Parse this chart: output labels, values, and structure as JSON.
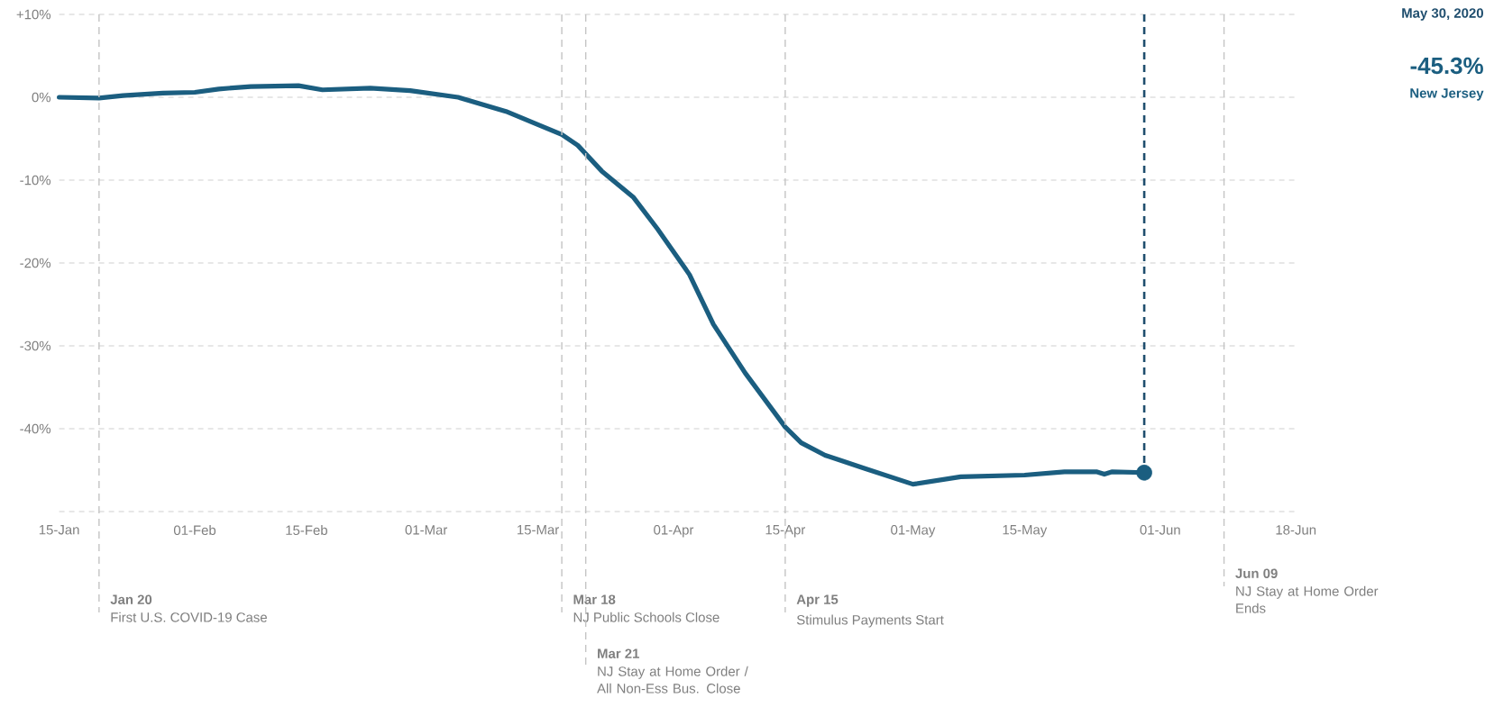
{
  "chart_data": {
    "type": "line",
    "x": [
      "2020-01-15",
      "2020-01-20",
      "2020-01-23",
      "2020-01-28",
      "2020-02-01",
      "2020-02-04",
      "2020-02-08",
      "2020-02-14",
      "2020-02-17",
      "2020-02-23",
      "2020-02-28",
      "2020-03-05",
      "2020-03-11",
      "2020-03-15",
      "2020-03-18",
      "2020-03-20",
      "2020-03-23",
      "2020-03-27",
      "2020-03-30",
      "2020-04-03",
      "2020-04-06",
      "2020-04-10",
      "2020-04-15",
      "2020-04-17",
      "2020-04-20",
      "2020-04-25",
      "2020-05-01",
      "2020-05-07",
      "2020-05-15",
      "2020-05-20",
      "2020-05-24",
      "2020-05-25",
      "2020-05-26",
      "2020-05-30"
    ],
    "series": [
      {
        "name": "New Jersey",
        "color": "#1b5e80",
        "marker": "none",
        "line_style": "solid",
        "values": [
          0,
          -0.1,
          0.2,
          0.5,
          0.6,
          1.0,
          1.3,
          1.4,
          0.9,
          1.1,
          0.8,
          0,
          -1.7,
          -3.3,
          -4.5,
          -5.8,
          -8.9,
          -12.1,
          -15.9,
          -21.4,
          -27.4,
          -33.3,
          -39.8,
          -41.7,
          -43.2,
          -44.8,
          -46.7,
          -45.8,
          -45.6,
          -45.2,
          -45.2,
          -45.5,
          -45.2,
          -45.3
        ]
      },
      {
        "type": "scatter",
        "color": "#1b5e80",
        "marker": "circle",
        "x": [
          "2020-05-30"
        ],
        "values": [
          -45.3
        ]
      }
    ],
    "xlim": [
      "2020-01-15",
      "2020-06-18"
    ],
    "xticks": [
      {
        "value": "2020-01-15",
        "label": "15-Jan"
      },
      {
        "value": "2020-02-01",
        "label": "01-Feb"
      },
      {
        "value": "2020-02-15",
        "label": "15-Feb"
      },
      {
        "value": "2020-03-01",
        "label": "01-Mar"
      },
      {
        "value": "2020-03-15",
        "label": "15-Mar"
      },
      {
        "value": "2020-04-01",
        "label": "01-Apr"
      },
      {
        "value": "2020-04-15",
        "label": "15-Apr"
      },
      {
        "value": "2020-05-01",
        "label": "01-May"
      },
      {
        "value": "2020-05-15",
        "label": "15-May"
      },
      {
        "value": "2020-06-01",
        "label": "01-Jun"
      },
      {
        "value": "2020-06-18",
        "label": "18-Jun"
      }
    ],
    "ylim": [
      -50,
      10
    ],
    "yticks": [
      {
        "value": 10,
        "label": "+10%"
      },
      {
        "value": 0,
        "label": "0%"
      },
      {
        "value": -10,
        "label": "-10%"
      },
      {
        "value": -20,
        "label": "-20%"
      },
      {
        "value": -30,
        "label": "-30%"
      },
      {
        "value": -40,
        "label": "-40%"
      },
      {
        "value": -50,
        "label": null
      }
    ],
    "grid": "y",
    "legend": false,
    "ref_lines": [
      {
        "axis": "x",
        "value": "2020-01-20",
        "label": "First U.S. COVID-19 Case",
        "color": "#c4c4c4",
        "line_style": "dashed"
      },
      {
        "axis": "x",
        "value": "2020-03-18",
        "label": "NJ Public Schools Close",
        "color": "#c4c4c4",
        "line_style": "dashed"
      },
      {
        "axis": "x",
        "value": "2020-03-21",
        "label": "NJ Stay at Home Order / All Non-Ess Bus. Close",
        "color": "#c4c4c4",
        "line_style": "dashed"
      },
      {
        "axis": "x",
        "value": "2020-04-15",
        "label": "Stimulus Payments Start",
        "color": "#c4c4c4",
        "line_style": "dashed"
      },
      {
        "axis": "x",
        "value": "2020-06-09",
        "label": "NJ Stay at Home Order Ends",
        "color": "#c4c4c4",
        "line_style": "dashed"
      },
      {
        "axis": "x",
        "value": "2020-05-30",
        "label": "May 30, 2020",
        "color": "#1f4e6e",
        "line_style": "dashed"
      }
    ],
    "annotations": [
      {
        "text": "Jan 20",
        "x": "2020-01-20"
      },
      {
        "text": "Mar 18",
        "x": "2020-03-18"
      },
      {
        "text": "Mar 21",
        "x": "2020-03-21"
      },
      {
        "text": "Apr 15",
        "x": "2020-04-15"
      },
      {
        "text": "Jun 09",
        "x": "2020-06-09"
      },
      "-45.3%"
    ]
  }
}
